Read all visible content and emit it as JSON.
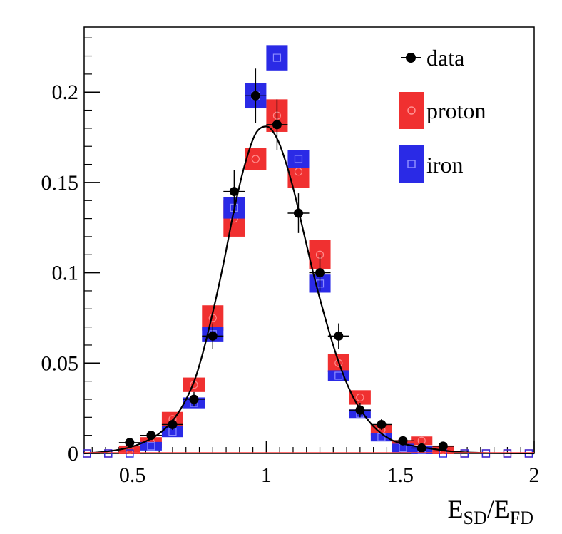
{
  "chart_data": {
    "type": "scatter",
    "title": "",
    "xlabel": {
      "main1": "E",
      "sub1": "SD",
      "slash": "/",
      "main2": "E",
      "sub2": "FD"
    },
    "ylabel": "",
    "xlim": [
      0.32,
      2.0
    ],
    "ylim": [
      0,
      0.236
    ],
    "x_ticks": [
      {
        "value": 0.5,
        "label": "0.5"
      },
      {
        "value": 1.0,
        "label": "1"
      },
      {
        "value": 1.5,
        "label": "1.5"
      },
      {
        "value": 2.0,
        "label": "2"
      }
    ],
    "y_ticks": [
      {
        "value": 0.0,
        "label": "0"
      },
      {
        "value": 0.05,
        "label": "0.05"
      },
      {
        "value": 0.1,
        "label": "0.1"
      },
      {
        "value": 0.15,
        "label": "0.15"
      },
      {
        "value": 0.2,
        "label": "0.2"
      }
    ],
    "bin_width": 0.08,
    "legend": {
      "position": "top-right",
      "entries": [
        {
          "key": "data",
          "label": "data"
        },
        {
          "key": "proton",
          "label": "proton"
        },
        {
          "key": "iron",
          "label": "iron"
        }
      ]
    },
    "colors": {
      "data": "#000000",
      "proton": "#f03030",
      "iron": "#2a2ae6",
      "frame": "#000000",
      "proton_axis": "#ff4040"
    },
    "series": [
      {
        "name": "data",
        "x": [
          0.49,
          0.57,
          0.65,
          0.73,
          0.8,
          0.88,
          0.96,
          1.04,
          1.12,
          1.2,
          1.27,
          1.35,
          1.43,
          1.51,
          1.58,
          1.66
        ],
        "y": [
          0.006,
          0.01,
          0.016,
          0.03,
          0.065,
          0.145,
          0.198,
          0.182,
          0.133,
          0.1,
          0.065,
          0.024,
          0.016,
          0.007,
          0.003,
          0.004
        ],
        "yerr": [
          0.002,
          0.002,
          0.003,
          0.004,
          0.007,
          0.012,
          0.015,
          0.014,
          0.011,
          0.01,
          0.007,
          0.004,
          0.003,
          0.002,
          0.002,
          0.002
        ]
      },
      {
        "name": "proton",
        "x": [
          0.33,
          0.41,
          0.49,
          0.57,
          0.65,
          0.73,
          0.8,
          0.88,
          0.96,
          1.04,
          1.12,
          1.2,
          1.27,
          1.35,
          1.43,
          1.51,
          1.58,
          1.66,
          1.74,
          1.82,
          1.9,
          1.98
        ],
        "y": [
          0.0,
          0.0,
          0.002,
          0.006,
          0.019,
          0.038,
          0.075,
          0.13,
          0.163,
          0.187,
          0.156,
          0.11,
          0.05,
          0.031,
          0.013,
          0.005,
          0.007,
          0.002,
          0.001,
          0.0,
          0.0,
          0.0
        ],
        "yerr": [
          0.0004,
          0.0004,
          0.002,
          0.003,
          0.004,
          0.004,
          0.007,
          0.01,
          0.006,
          0.009,
          0.009,
          0.008,
          0.005,
          0.004,
          0.003,
          0.002,
          0.002,
          0.001,
          0.001,
          0.0004,
          0.0004,
          0.0004
        ]
      },
      {
        "name": "iron",
        "x": [
          0.33,
          0.41,
          0.49,
          0.57,
          0.65,
          0.73,
          0.8,
          0.88,
          0.96,
          1.04,
          1.12,
          1.2,
          1.27,
          1.35,
          1.43,
          1.51,
          1.58,
          1.66,
          1.74,
          1.82,
          1.9,
          1.98
        ],
        "y": [
          0.0,
          0.0,
          0.001,
          0.004,
          0.012,
          0.028,
          0.066,
          0.136,
          0.198,
          0.219,
          0.163,
          0.094,
          0.043,
          0.022,
          0.009,
          0.003,
          0.002,
          0.001,
          0.0,
          0.0,
          0.0,
          0.0
        ],
        "yerr": [
          0.0004,
          0.0004,
          0.001,
          0.002,
          0.003,
          0.003,
          0.004,
          0.006,
          0.007,
          0.007,
          0.005,
          0.005,
          0.003,
          0.002,
          0.002,
          0.001,
          0.001,
          0.001,
          0.0004,
          0.0004,
          0.0004,
          0.0004
        ]
      },
      {
        "name": "fit",
        "description_type": "curve",
        "x": [
          0.32,
          0.4,
          0.48,
          0.54,
          0.6,
          0.66,
          0.72,
          0.76,
          0.8,
          0.84,
          0.88,
          0.92,
          0.96,
          1.0,
          1.03,
          1.06,
          1.1,
          1.14,
          1.18,
          1.22,
          1.26,
          1.3,
          1.34,
          1.4,
          1.46,
          1.52,
          1.6,
          1.7,
          1.8,
          2.0
        ],
        "y": [
          0.0,
          0.001,
          0.003,
          0.006,
          0.011,
          0.02,
          0.036,
          0.054,
          0.078,
          0.105,
          0.135,
          0.16,
          0.177,
          0.181,
          0.177,
          0.167,
          0.147,
          0.122,
          0.097,
          0.075,
          0.055,
          0.039,
          0.027,
          0.015,
          0.008,
          0.005,
          0.003,
          0.001,
          0.0003,
          0.0
        ]
      }
    ]
  }
}
